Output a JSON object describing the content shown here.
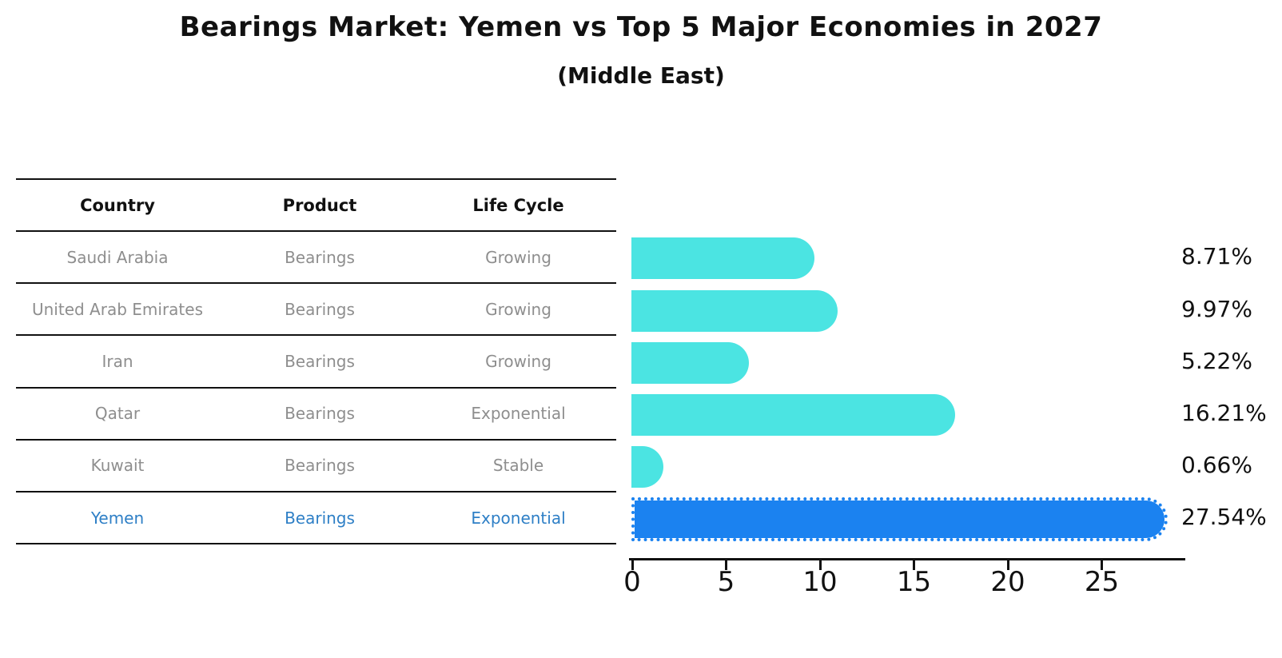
{
  "title": "Bearings Market: Yemen vs Top 5 Major Economies in 2027",
  "subtitle": "(Middle East)",
  "table": {
    "headers": [
      "Country",
      "Product",
      "Life Cycle"
    ],
    "rows": [
      {
        "country": "Saudi Arabia",
        "product": "Bearings",
        "life_cycle": "Growing",
        "highlighted": false
      },
      {
        "country": "United Arab Emirates",
        "product": "Bearings",
        "life_cycle": "Growing",
        "highlighted": false
      },
      {
        "country": "Iran",
        "product": "Bearings",
        "life_cycle": "Growing",
        "highlighted": false
      },
      {
        "country": "Qatar",
        "product": "Bearings",
        "life_cycle": "Exponential",
        "highlighted": false
      },
      {
        "country": "Kuwait",
        "product": "Bearings",
        "life_cycle": "Stable",
        "highlighted": false
      },
      {
        "country": "Yemen",
        "product": "Bearings",
        "life_cycle": "Exponential",
        "highlighted": true
      }
    ]
  },
  "chart_data": {
    "type": "bar",
    "orientation": "horizontal",
    "title": "Bearings Market: Yemen vs Top 5 Major Economies in 2027",
    "subtitle": "(Middle East)",
    "categories": [
      "Saudi Arabia",
      "United Arab Emirates",
      "Iran",
      "Qatar",
      "Kuwait",
      "Yemen"
    ],
    "values": [
      8.71,
      9.97,
      5.22,
      16.21,
      0.66,
      27.54
    ],
    "value_labels": [
      "8.71%",
      "9.97%",
      "5.22%",
      "16.21%",
      "0.66%",
      "27.54%"
    ],
    "unit": "%",
    "xlabel": "",
    "ylabel": "",
    "x_ticks": [
      0,
      5,
      10,
      15,
      20,
      25
    ],
    "xlim": [
      0,
      29.4
    ],
    "grid": false,
    "legend": null,
    "bar_color": "#4be4e2",
    "highlight_index": 5,
    "highlight_color": "#1b82f0",
    "highlight_border_style": "dotted",
    "highlight_text_color": "#2e7fc6"
  }
}
